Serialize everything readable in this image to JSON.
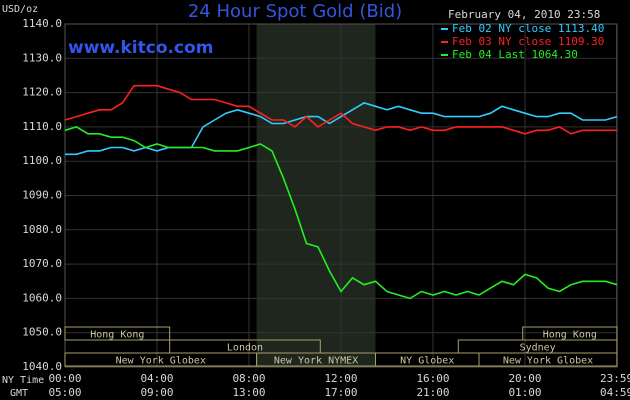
{
  "chart_data": {
    "type": "line",
    "title": "24 Hour Spot Gold (Bid)",
    "unit_label": "USD/oz",
    "watermark": "www.kitco.com",
    "timestamp": "February 04, 2010 23:58",
    "x": [
      0,
      0.5,
      1,
      1.5,
      2,
      2.5,
      3,
      3.5,
      4,
      4.5,
      5,
      5.5,
      6,
      6.5,
      7,
      7.5,
      8,
      8.5,
      9,
      9.5,
      10,
      10.5,
      11,
      11.5,
      12,
      12.5,
      13,
      13.5,
      14,
      14.5,
      15,
      15.5,
      16,
      16.5,
      17,
      17.5,
      18,
      18.5,
      19,
      19.5,
      20,
      20.5,
      21,
      21.5,
      22,
      22.5,
      23,
      23.5,
      24
    ],
    "series": [
      {
        "name": "Feb 02 NY close 1113.40",
        "color": "#33ccff",
        "values": [
          1102,
          1102,
          1103,
          1103,
          1104,
          1104,
          1103,
          1104,
          1103,
          1104,
          1104,
          1104,
          1110,
          1112,
          1114,
          1115,
          1114,
          1113,
          1111,
          1111,
          1112,
          1113,
          1113,
          1111,
          1113,
          1115,
          1117,
          1116,
          1115,
          1116,
          1115,
          1114,
          1114,
          1113,
          1113,
          1113,
          1113,
          1114,
          1116,
          1115,
          1114,
          1113,
          1113,
          1114,
          1114,
          1112,
          1112,
          1112,
          1113
        ]
      },
      {
        "name": "Feb 03 NY close 1109.30",
        "color": "#ff2020",
        "values": [
          1112,
          1113,
          1114,
          1115,
          1115,
          1117,
          1122,
          1122,
          1122,
          1121,
          1120,
          1118,
          1118,
          1118,
          1117,
          1116,
          1116,
          1114,
          1112,
          1112,
          1110,
          1113,
          1110,
          1112,
          1114,
          1111,
          1110,
          1109,
          1110,
          1110,
          1109,
          1110,
          1109,
          1109,
          1110,
          1110,
          1110,
          1110,
          1110,
          1109,
          1108,
          1109,
          1109,
          1110,
          1108,
          1109,
          1109,
          1109,
          1109
        ]
      },
      {
        "name": "Feb 04 Last 1064.30",
        "color": "#22ee22",
        "values": [
          1109,
          1110,
          1108,
          1108,
          1107,
          1107,
          1106,
          1104,
          1105,
          1104,
          1104,
          1104,
          1104,
          1103,
          1103,
          1103,
          1104,
          1105,
          1103,
          1095,
          1086,
          1076,
          1075,
          1068,
          1062,
          1066,
          1064,
          1065,
          1062,
          1061,
          1060,
          1062,
          1061,
          1062,
          1061,
          1062,
          1061,
          1063,
          1065,
          1064,
          1067,
          1066,
          1063,
          1062,
          1064,
          1065,
          1065,
          1065,
          1064
        ]
      }
    ],
    "xlim": [
      0,
      24
    ],
    "ylim": [
      1040,
      1140
    ],
    "yticks": [
      {
        "value": 1040,
        "label": "1040.0"
      },
      {
        "value": 1050,
        "label": "1050.0"
      },
      {
        "value": 1060,
        "label": "1060.0"
      },
      {
        "value": 1070,
        "label": "1070.0"
      },
      {
        "value": 1080,
        "label": "1080.0"
      },
      {
        "value": 1090,
        "label": "1090.0"
      },
      {
        "value": 1100,
        "label": "1100.0"
      },
      {
        "value": 1110,
        "label": "1110.0"
      },
      {
        "value": 1120,
        "label": "1120.0"
      },
      {
        "value": 1130,
        "label": "1130.0"
      },
      {
        "value": 1140,
        "label": "1140.0"
      }
    ],
    "xticks": [
      {
        "value": 0,
        "label": "00:00"
      },
      {
        "value": 4,
        "label": "04:00"
      },
      {
        "value": 8,
        "label": "08:00"
      },
      {
        "value": 12,
        "label": "12:00"
      },
      {
        "value": 16,
        "label": "16:00"
      },
      {
        "value": 20,
        "label": "20:00"
      },
      {
        "value": 23.983,
        "label": "23:59"
      }
    ],
    "x_axis_label": "NY Time",
    "x2_axis_label": "GMT",
    "x2_tick_labels": [
      "05:00",
      "09:00",
      "13:00",
      "17:00",
      "21:00",
      "01:00",
      "04:59"
    ],
    "grid": true,
    "sessions": [
      {
        "label": "Hong Kong",
        "start": 0,
        "end": 4.55,
        "row": 0
      },
      {
        "label": "Hong Kong",
        "start": 19.9,
        "end": 24,
        "row": 0
      },
      {
        "label": "London",
        "start": 4.55,
        "end": 11.1,
        "row": 1
      },
      {
        "label": "Sydney",
        "start": 17.1,
        "end": 24,
        "row": 1
      },
      {
        "label": "New York Globex",
        "start": 0,
        "end": 8.33,
        "row": 2
      },
      {
        "label": "New York NYMEX",
        "start": 8.33,
        "end": 13.5,
        "row": 2,
        "highlight": true
      },
      {
        "label": "NY Globex",
        "start": 13.5,
        "end": 18.0,
        "row": 2
      },
      {
        "label": "New York Globex",
        "start": 18.0,
        "end": 24,
        "row": 2
      }
    ]
  }
}
